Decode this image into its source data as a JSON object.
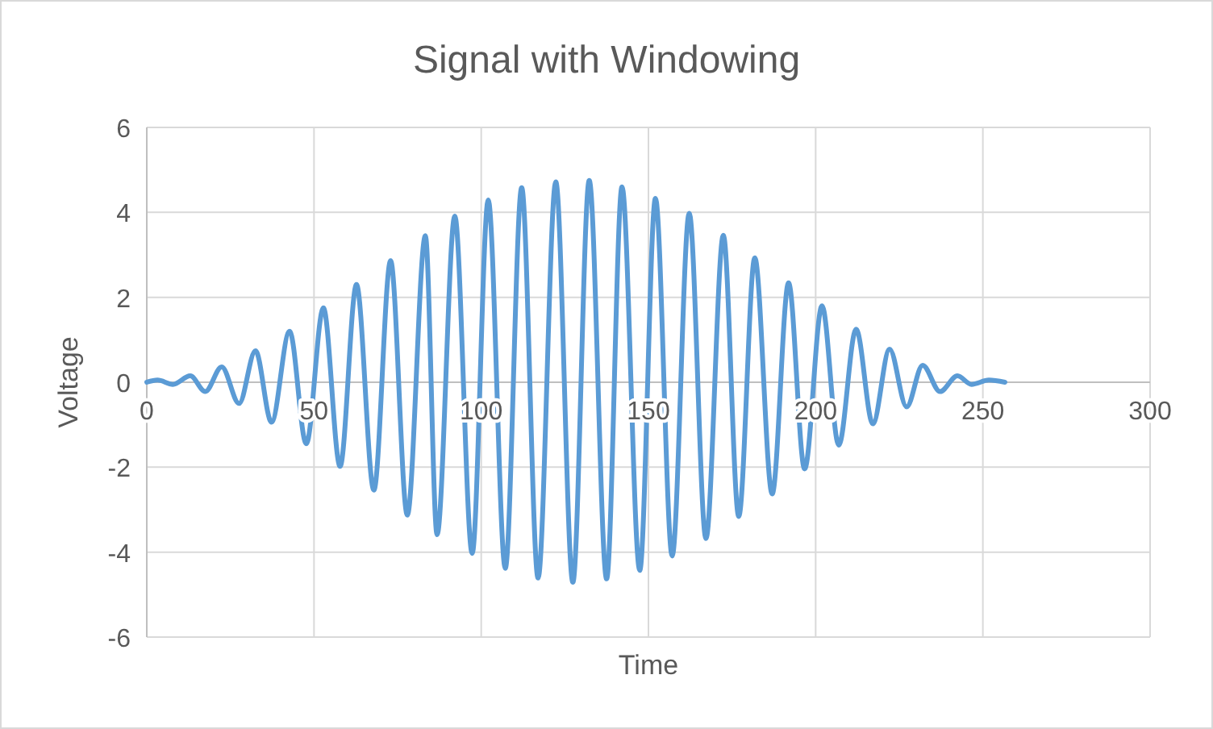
{
  "chart_data": {
    "type": "line",
    "title": "Signal with Windowing",
    "xlabel": "Time",
    "ylabel": "Voltage",
    "xlim": [
      0,
      300
    ],
    "xticks": [
      0,
      50,
      100,
      150,
      200,
      250,
      300
    ],
    "ylim": [
      -6,
      6
    ],
    "yticks": [
      -6,
      -4,
      -2,
      0,
      2,
      4,
      6
    ],
    "grid": true,
    "marker": "none",
    "line_style": "solid",
    "series": [
      {
        "color": "#5b9bd5",
        "x": [
          0,
          3.2,
          7.8,
          13,
          17.5,
          22.4,
          27.6,
          32.5,
          37.3,
          42.7,
          47.7,
          52.8,
          57.8,
          62.7,
          67.9,
          72.9,
          77.9,
          83.3,
          86.8,
          92.1,
          97.3,
          102.1,
          107.2,
          112.1,
          117,
          122.3,
          127.4,
          132.3,
          137.5,
          142.1,
          147.4,
          152.1,
          157.1,
          162.2,
          167.2,
          172.4,
          177,
          181.8,
          187,
          191.9,
          196.7,
          201.9,
          206.9,
          212.1,
          217.1,
          222.1,
          227.2,
          232,
          237.2,
          242.4,
          246.6,
          251.8,
          256.6
        ],
        "values": [
          0,
          0.05,
          -0.05,
          0.15,
          -0.22,
          0.36,
          -0.5,
          0.74,
          -0.94,
          1.2,
          -1.45,
          1.75,
          -1.98,
          2.3,
          -2.54,
          2.86,
          -3.13,
          3.45,
          -3.59,
          3.91,
          -4.03,
          4.29,
          -4.38,
          4.58,
          -4.61,
          4.72,
          -4.71,
          4.75,
          -4.63,
          4.6,
          -4.43,
          4.33,
          -4.09,
          3.98,
          -3.68,
          3.46,
          -3.16,
          2.93,
          -2.63,
          2.34,
          -2.04,
          1.8,
          -1.48,
          1.25,
          -0.98,
          0.78,
          -0.58,
          0.4,
          -0.22,
          0.15,
          -0.05,
          0.05,
          0
        ]
      }
    ]
  }
}
